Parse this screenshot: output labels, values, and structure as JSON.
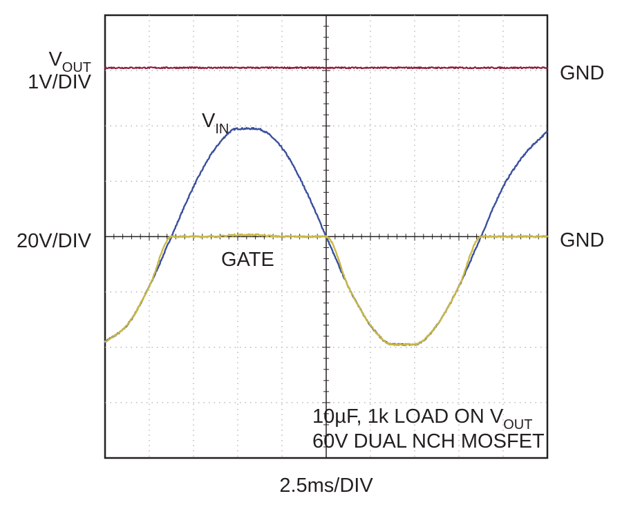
{
  "chart_data": {
    "type": "line",
    "title": "",
    "x_scale_label": "2.5ms/DIV",
    "divisions": {
      "x": 10,
      "y": 8
    },
    "x_range_div": [
      0,
      10
    ],
    "y_range_div": [
      -4,
      4
    ],
    "grid": true,
    "colors": {
      "vout": "#8b1d3b",
      "vin": "#3a4f9c",
      "gate": "#c9b945",
      "grid": "#a8a8a8",
      "frame": "#231f20"
    },
    "channel_labels": {
      "vout_main": "V",
      "vout_sub": "OUT",
      "vout_scale": "1V/DIV",
      "vin_main": "V",
      "vin_sub": "IN",
      "vin_scale": "20V/DIV",
      "gate": "GATE"
    },
    "gnd_labels": {
      "top": "GND",
      "mid": "GND"
    },
    "annotation": {
      "line1_main": "10µF, 1k LOAD ON V",
      "line1_sub": "OUT",
      "line2": "60V DUAL NCH MOSFET"
    },
    "series": [
      {
        "name": "VOUT",
        "x": [
          0,
          1,
          2,
          3,
          4,
          5,
          6,
          7,
          8,
          9,
          10
        ],
        "y": [
          3.05,
          3.05,
          3.05,
          3.05,
          3.05,
          3.05,
          3.05,
          3.05,
          3.05,
          3.05,
          3.05
        ]
      },
      {
        "name": "VIN",
        "x": [
          0,
          0.5,
          1,
          1.5,
          2,
          2.5,
          3,
          3.4,
          4,
          4.5,
          5,
          5.5,
          6,
          6.5,
          7,
          7.5,
          8,
          8.5,
          9,
          9.5,
          10
        ],
        "y": [
          -1.9,
          -1.6,
          -0.9,
          0,
          0.9,
          1.6,
          1.95,
          1.95,
          1.6,
          0.9,
          0,
          -0.9,
          -1.6,
          -1.95,
          -1.95,
          -1.6,
          -0.9,
          0,
          0.9,
          1.5,
          1.9
        ]
      },
      {
        "name": "GATE",
        "x": [
          0,
          0.5,
          1,
          1.5,
          2,
          2.5,
          3,
          3.4,
          4,
          4.5,
          5,
          5.5,
          6,
          6.5,
          7,
          7.5,
          8,
          8.5,
          9,
          9.5,
          10
        ],
        "y": [
          -1.9,
          -1.6,
          -0.9,
          0,
          0,
          0,
          0.03,
          0.03,
          0,
          0,
          0,
          -0.9,
          -1.6,
          -1.95,
          -1.95,
          -1.6,
          -0.9,
          0,
          0,
          0,
          0
        ]
      }
    ]
  }
}
